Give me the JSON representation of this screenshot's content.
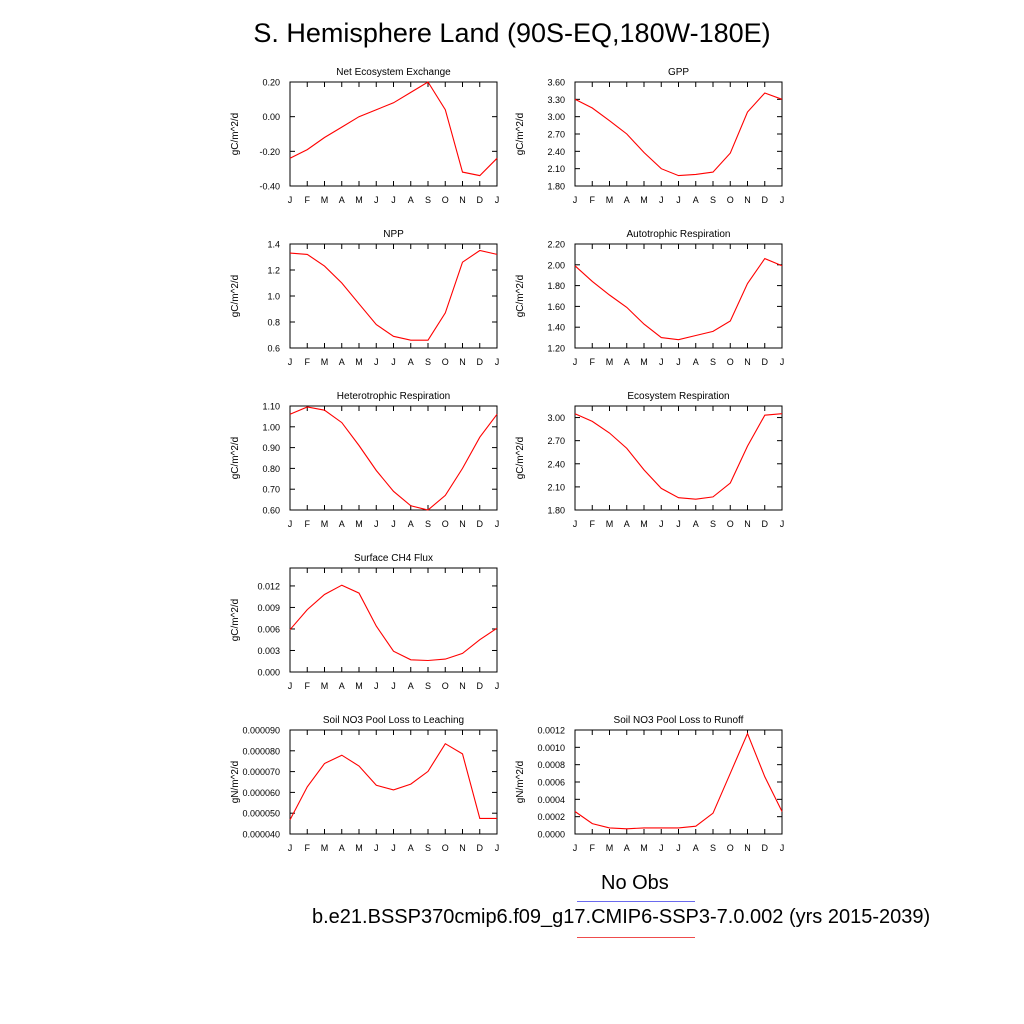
{
  "page": {
    "title": "S. Hemisphere Land (90S-EQ,180W-180E)",
    "legend": [
      {
        "label": "No Obs",
        "color": "#6a6aee"
      },
      {
        "label": "b.e21.BSSP370cmip6.f09_g17.CMIP6-SSP3-7.0.002 (yrs 2015-2039)",
        "color": "#ee4c4c"
      }
    ]
  },
  "chart_data": [
    {
      "type": "line",
      "title": "Net Ecosystem Exchange",
      "ylabel": "gC/m^2/d",
      "x": [
        "J",
        "F",
        "M",
        "A",
        "M",
        "J",
        "J",
        "A",
        "S",
        "O",
        "N",
        "D",
        "J"
      ],
      "ylim": [
        -0.4,
        0.2
      ],
      "yticks": [
        "-0.40",
        "-0.20",
        "0.00",
        "0.20"
      ],
      "ytick_values": [
        -0.4,
        -0.2,
        0.0,
        0.2
      ],
      "series": [
        {
          "color": "#ff0000",
          "values": [
            -0.24,
            -0.19,
            -0.12,
            -0.06,
            0.0,
            0.04,
            0.08,
            0.14,
            0.2,
            0.04,
            -0.32,
            -0.34,
            -0.24
          ]
        }
      ]
    },
    {
      "type": "line",
      "title": "GPP",
      "ylabel": "gC/m^2/d",
      "x": [
        "J",
        "F",
        "M",
        "A",
        "M",
        "J",
        "J",
        "A",
        "S",
        "O",
        "N",
        "D",
        "J"
      ],
      "ylim": [
        1.8,
        3.6
      ],
      "yticks": [
        "1.80",
        "2.10",
        "2.40",
        "2.70",
        "3.00",
        "3.30",
        "3.60"
      ],
      "ytick_values": [
        1.8,
        2.1,
        2.4,
        2.7,
        3.0,
        3.3,
        3.6
      ],
      "series": [
        {
          "color": "#ff0000",
          "values": [
            3.3,
            3.15,
            2.93,
            2.7,
            2.38,
            2.1,
            1.98,
            2.0,
            2.04,
            2.37,
            3.08,
            3.41,
            3.3
          ]
        }
      ]
    },
    {
      "type": "line",
      "title": "NPP",
      "ylabel": "gC/m^2/d",
      "x": [
        "J",
        "F",
        "M",
        "A",
        "M",
        "J",
        "J",
        "A",
        "S",
        "O",
        "N",
        "D",
        "J"
      ],
      "ylim": [
        0.6,
        1.4
      ],
      "yticks": [
        "0.6",
        "0.8",
        "1.0",
        "1.2",
        "1.4"
      ],
      "ytick_values": [
        0.6,
        0.8,
        1.0,
        1.2,
        1.4
      ],
      "series": [
        {
          "color": "#ff0000",
          "values": [
            1.33,
            1.32,
            1.23,
            1.1,
            0.94,
            0.78,
            0.69,
            0.66,
            0.66,
            0.87,
            1.26,
            1.35,
            1.32
          ]
        }
      ]
    },
    {
      "type": "line",
      "title": "Autotrophic Respiration",
      "ylabel": "gC/m^2/d",
      "x": [
        "J",
        "F",
        "M",
        "A",
        "M",
        "J",
        "J",
        "A",
        "S",
        "O",
        "N",
        "D",
        "J"
      ],
      "ylim": [
        1.2,
        2.2
      ],
      "yticks": [
        "1.20",
        "1.40",
        "1.60",
        "1.80",
        "2.00",
        "2.20"
      ],
      "ytick_values": [
        1.2,
        1.4,
        1.6,
        1.8,
        2.0,
        2.2
      ],
      "series": [
        {
          "color": "#ff0000",
          "values": [
            1.99,
            1.84,
            1.71,
            1.59,
            1.43,
            1.3,
            1.28,
            1.32,
            1.36,
            1.46,
            1.82,
            2.06,
            1.99
          ]
        }
      ]
    },
    {
      "type": "line",
      "title": "Heterotrophic Respiration",
      "ylabel": "gC/m^2/d",
      "x": [
        "J",
        "F",
        "M",
        "A",
        "M",
        "J",
        "J",
        "A",
        "S",
        "O",
        "N",
        "D",
        "J"
      ],
      "ylim": [
        0.6,
        1.1
      ],
      "yticks": [
        "0.60",
        "0.70",
        "0.80",
        "0.90",
        "1.00",
        "1.10"
      ],
      "ytick_values": [
        0.6,
        0.7,
        0.8,
        0.9,
        1.0,
        1.1
      ],
      "series": [
        {
          "color": "#ff0000",
          "values": [
            1.06,
            1.095,
            1.08,
            1.02,
            0.91,
            0.79,
            0.69,
            0.62,
            0.6,
            0.67,
            0.8,
            0.95,
            1.06
          ]
        }
      ]
    },
    {
      "type": "line",
      "title": "Ecosystem Respiration",
      "ylabel": "gC/m^2/d",
      "x": [
        "J",
        "F",
        "M",
        "A",
        "M",
        "J",
        "J",
        "A",
        "S",
        "O",
        "N",
        "D",
        "J"
      ],
      "ylim": [
        1.8,
        3.15
      ],
      "yticks": [
        "1.80",
        "2.10",
        "2.40",
        "2.70",
        "3.00"
      ],
      "ytick_values": [
        1.8,
        2.1,
        2.4,
        2.7,
        3.0
      ],
      "series": [
        {
          "color": "#ff0000",
          "values": [
            3.05,
            2.95,
            2.8,
            2.6,
            2.32,
            2.08,
            1.96,
            1.94,
            1.97,
            2.15,
            2.63,
            3.03,
            3.05
          ]
        }
      ]
    },
    {
      "type": "line",
      "title": "Surface CH4 Flux",
      "ylabel": "gC/m^2/d",
      "x": [
        "J",
        "F",
        "M",
        "A",
        "M",
        "J",
        "J",
        "A",
        "S",
        "O",
        "N",
        "D",
        "J"
      ],
      "ylim": [
        0.0,
        0.0145
      ],
      "yticks": [
        "0.000",
        "0.003",
        "0.006",
        "0.009",
        "0.012"
      ],
      "ytick_values": [
        0.0,
        0.003,
        0.006,
        0.009,
        0.012
      ],
      "series": [
        {
          "color": "#ff0000",
          "values": [
            0.0059,
            0.0087,
            0.0108,
            0.0121,
            0.011,
            0.0064,
            0.0029,
            0.0017,
            0.0016,
            0.0018,
            0.0026,
            0.0045,
            0.0061
          ]
        }
      ]
    },
    {
      "type": "line",
      "title": "Soil NO3 Pool Loss to Leaching",
      "ylabel": "gN/m^2/d",
      "x": [
        "J",
        "F",
        "M",
        "A",
        "M",
        "J",
        "J",
        "A",
        "S",
        "O",
        "N",
        "D",
        "J"
      ],
      "ylim": [
        4e-05,
        9e-05
      ],
      "yticks": [
        "0.000040",
        "0.000050",
        "0.000060",
        "0.000070",
        "0.000080",
        "0.000090"
      ],
      "ytick_values": [
        4e-05,
        5e-05,
        6e-05,
        7e-05,
        8e-05,
        9e-05
      ],
      "series": [
        {
          "color": "#ff0000",
          "values": [
            4.68e-05,
            6.27e-05,
            7.39e-05,
            7.79e-05,
            7.27e-05,
            6.34e-05,
            6.12e-05,
            6.4e-05,
            7.01e-05,
            8.34e-05,
            7.85e-05,
            4.75e-05,
            4.75e-05
          ]
        }
      ]
    },
    {
      "type": "line",
      "title": "Soil NO3 Pool Loss to Runoff",
      "ylabel": "gN/m^2/d",
      "x": [
        "J",
        "F",
        "M",
        "A",
        "M",
        "J",
        "J",
        "A",
        "S",
        "O",
        "N",
        "D",
        "J"
      ],
      "ylim": [
        0.0,
        0.0012
      ],
      "yticks": [
        "0.0000",
        "0.0002",
        "0.0004",
        "0.0006",
        "0.0008",
        "0.0010",
        "0.0012"
      ],
      "ytick_values": [
        0.0,
        0.0002,
        0.0004,
        0.0006,
        0.0008,
        0.001,
        0.0012
      ],
      "series": [
        {
          "color": "#ff0000",
          "values": [
            0.00026,
            0.00012,
            7e-05,
            6e-05,
            7e-05,
            7e-05,
            7e-05,
            9e-05,
            0.00024,
            0.0007,
            0.00116,
            0.00066,
            0.00026
          ]
        }
      ]
    }
  ]
}
